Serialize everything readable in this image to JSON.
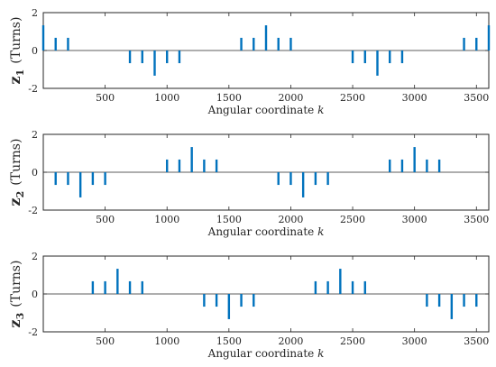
{
  "chart_data": [
    {
      "type": "stem",
      "ylabel_var": "z",
      "ylabel_sub": "1",
      "ylabel_unit": "(Turns)",
      "xlabel": "Angular coordinate",
      "xlabel_var": "k",
      "xlim": [
        0,
        3600
      ],
      "ylim": [
        -2,
        2
      ],
      "xticks": [
        500,
        1000,
        1500,
        2000,
        2500,
        3000,
        3500
      ],
      "yticks": [
        -2,
        0,
        2
      ],
      "color": "#0072BD",
      "points": [
        {
          "x": 0,
          "y": 1.33
        },
        {
          "x": 100,
          "y": 0.67
        },
        {
          "x": 200,
          "y": 0.67
        },
        {
          "x": 700,
          "y": -0.67
        },
        {
          "x": 800,
          "y": -0.67
        },
        {
          "x": 900,
          "y": -1.33
        },
        {
          "x": 1000,
          "y": -0.67
        },
        {
          "x": 1100,
          "y": -0.67
        },
        {
          "x": 1600,
          "y": 0.67
        },
        {
          "x": 1700,
          "y": 0.67
        },
        {
          "x": 1800,
          "y": 1.33
        },
        {
          "x": 1900,
          "y": 0.67
        },
        {
          "x": 2000,
          "y": 0.67
        },
        {
          "x": 2500,
          "y": -0.67
        },
        {
          "x": 2600,
          "y": -0.67
        },
        {
          "x": 2700,
          "y": -1.33
        },
        {
          "x": 2800,
          "y": -0.67
        },
        {
          "x": 2900,
          "y": -0.67
        },
        {
          "x": 3400,
          "y": 0.67
        },
        {
          "x": 3500,
          "y": 0.67
        },
        {
          "x": 3600,
          "y": 1.33
        }
      ]
    },
    {
      "type": "stem",
      "ylabel_var": "z",
      "ylabel_sub": "2",
      "ylabel_unit": "(Turns)",
      "xlabel": "Angular coordinate",
      "xlabel_var": "k",
      "xlim": [
        0,
        3600
      ],
      "ylim": [
        -2,
        2
      ],
      "xticks": [
        500,
        1000,
        1500,
        2000,
        2500,
        3000,
        3500
      ],
      "yticks": [
        -2,
        0,
        2
      ],
      "color": "#0072BD",
      "points": [
        {
          "x": 100,
          "y": -0.67
        },
        {
          "x": 200,
          "y": -0.67
        },
        {
          "x": 300,
          "y": -1.33
        },
        {
          "x": 400,
          "y": -0.67
        },
        {
          "x": 500,
          "y": -0.67
        },
        {
          "x": 1000,
          "y": 0.67
        },
        {
          "x": 1100,
          "y": 0.67
        },
        {
          "x": 1200,
          "y": 1.33
        },
        {
          "x": 1300,
          "y": 0.67
        },
        {
          "x": 1400,
          "y": 0.67
        },
        {
          "x": 1900,
          "y": -0.67
        },
        {
          "x": 2000,
          "y": -0.67
        },
        {
          "x": 2100,
          "y": -1.33
        },
        {
          "x": 2200,
          "y": -0.67
        },
        {
          "x": 2300,
          "y": -0.67
        },
        {
          "x": 2800,
          "y": 0.67
        },
        {
          "x": 2900,
          "y": 0.67
        },
        {
          "x": 3000,
          "y": 1.33
        },
        {
          "x": 3100,
          "y": 0.67
        },
        {
          "x": 3200,
          "y": 0.67
        }
      ]
    },
    {
      "type": "stem",
      "ylabel_var": "z",
      "ylabel_sub": "3",
      "ylabel_unit": "(Turns)",
      "xlabel": "Angular coordinate",
      "xlabel_var": "k",
      "xlim": [
        0,
        3600
      ],
      "ylim": [
        -2,
        2
      ],
      "xticks": [
        500,
        1000,
        1500,
        2000,
        2500,
        3000,
        3500
      ],
      "yticks": [
        -2,
        0,
        2
      ],
      "color": "#0072BD",
      "points": [
        {
          "x": 400,
          "y": 0.67
        },
        {
          "x": 500,
          "y": 0.67
        },
        {
          "x": 600,
          "y": 1.33
        },
        {
          "x": 700,
          "y": 0.67
        },
        {
          "x": 800,
          "y": 0.67
        },
        {
          "x": 1300,
          "y": -0.67
        },
        {
          "x": 1400,
          "y": -0.67
        },
        {
          "x": 1500,
          "y": -1.33
        },
        {
          "x": 1600,
          "y": -0.67
        },
        {
          "x": 1700,
          "y": -0.67
        },
        {
          "x": 2200,
          "y": 0.67
        },
        {
          "x": 2300,
          "y": 0.67
        },
        {
          "x": 2400,
          "y": 1.33
        },
        {
          "x": 2500,
          "y": 0.67
        },
        {
          "x": 2600,
          "y": 0.67
        },
        {
          "x": 3100,
          "y": -0.67
        },
        {
          "x": 3200,
          "y": -0.67
        },
        {
          "x": 3300,
          "y": -1.33
        },
        {
          "x": 3400,
          "y": -0.67
        },
        {
          "x": 3500,
          "y": -0.67
        }
      ]
    }
  ]
}
